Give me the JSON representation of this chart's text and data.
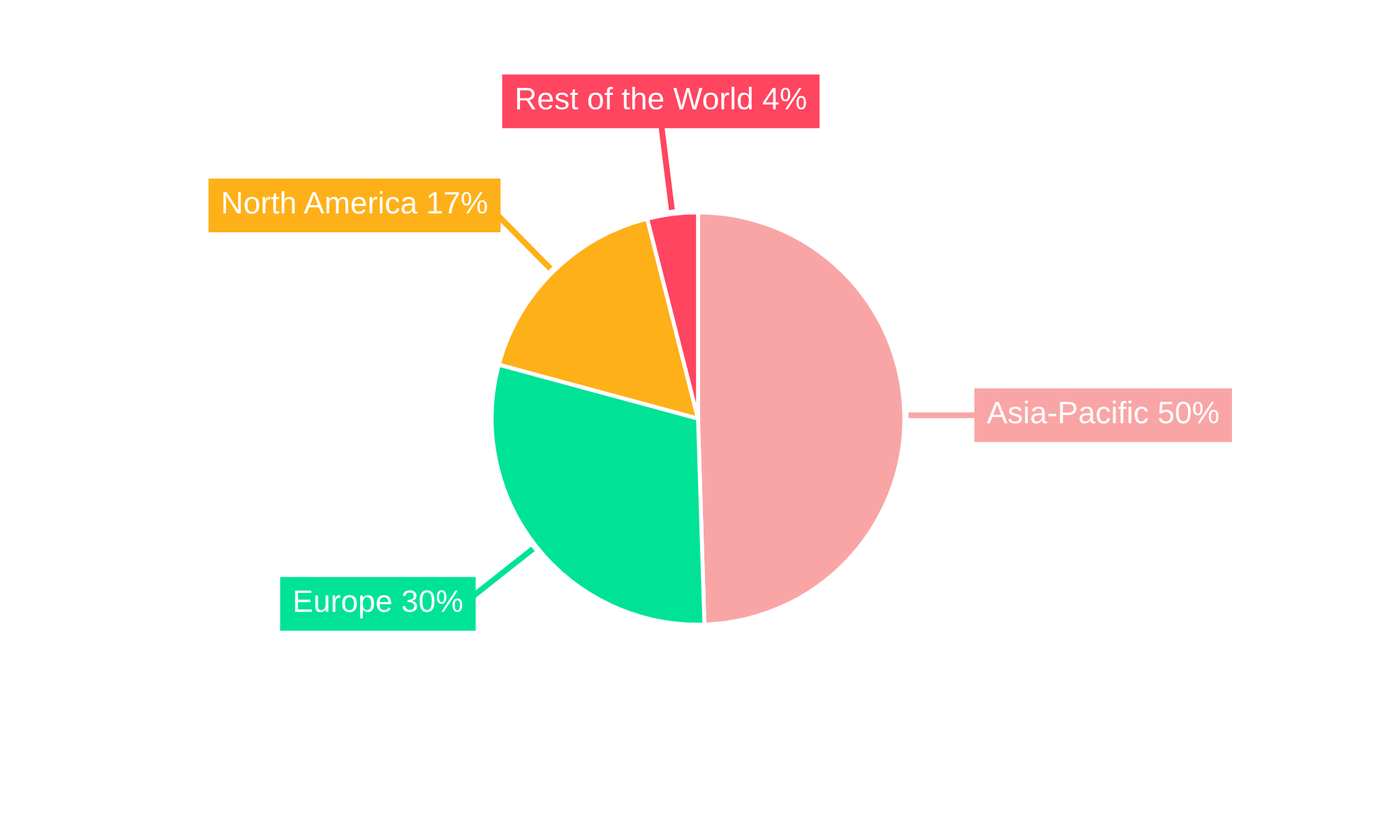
{
  "chart_data": {
    "type": "pie",
    "categories": [
      "Asia-Pacific",
      "Europe",
      "North America",
      "Rest of the World"
    ],
    "values": [
      50,
      30,
      17,
      4
    ],
    "colors": [
      "#f9a5a6",
      "#00e396",
      "#feb019",
      "#ff4560"
    ],
    "value_labels": [
      "50%",
      "30%",
      "17%",
      "4%"
    ]
  }
}
